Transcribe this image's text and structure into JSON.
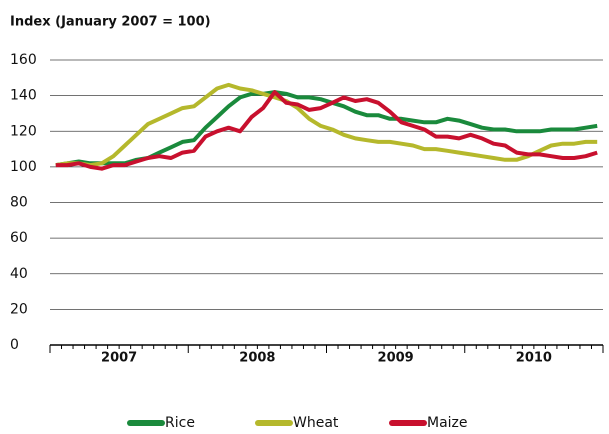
{
  "chart_data": {
    "type": "line",
    "title": "Index (January 2007 = 100)",
    "categories": [
      null,
      null,
      null,
      null,
      null,
      "2007",
      null,
      null,
      null,
      null,
      null,
      null,
      null,
      null,
      null,
      null,
      null,
      "2008",
      null,
      null,
      null,
      null,
      null,
      null,
      null,
      null,
      null,
      null,
      null,
      "2009",
      null,
      null,
      null,
      null,
      null,
      null,
      null,
      null,
      null,
      null,
      null,
      "2010",
      null,
      null,
      null,
      null,
      null,
      null
    ],
    "series": [
      {
        "name": "Rice",
        "color": "#1a8a3c",
        "values": [
          101,
          102,
          103,
          102,
          102,
          102,
          102,
          104,
          105,
          108,
          111,
          114,
          115,
          122,
          128,
          134,
          139,
          141,
          141,
          142,
          141,
          139,
          139,
          138,
          136,
          134,
          131,
          129,
          129,
          127,
          127,
          126,
          125,
          125,
          127,
          126,
          124,
          122,
          121,
          121,
          120,
          120,
          120,
          121,
          121,
          121,
          122,
          123
        ]
      },
      {
        "name": "Wheat",
        "color": "#b5b82c",
        "values": [
          101,
          102,
          102,
          101,
          102,
          106,
          112,
          118,
          124,
          127,
          130,
          133,
          134,
          139,
          144,
          146,
          144,
          143,
          141,
          139,
          137,
          133,
          127,
          123,
          121,
          118,
          116,
          115,
          114,
          114,
          113,
          112,
          110,
          110,
          109,
          108,
          107,
          106,
          105,
          104,
          104,
          106,
          109,
          112,
          113,
          113,
          114,
          114
        ]
      },
      {
        "name": "Maize",
        "color": "#c8102e",
        "values": [
          101,
          101,
          102,
          100,
          99,
          101,
          101,
          103,
          105,
          106,
          105,
          108,
          109,
          117,
          120,
          122,
          120,
          128,
          133,
          142,
          136,
          135,
          132,
          133,
          136,
          139,
          137,
          138,
          136,
          131,
          125,
          123,
          121,
          117,
          117,
          116,
          118,
          116,
          113,
          112,
          108,
          107,
          107,
          106,
          105,
          105,
          106,
          108
        ]
      }
    ],
    "ylim": [
      0,
      160
    ],
    "yticks": [
      0,
      20,
      40,
      60,
      80,
      100,
      120,
      140,
      160
    ],
    "grid": true,
    "legend": "bottom"
  }
}
